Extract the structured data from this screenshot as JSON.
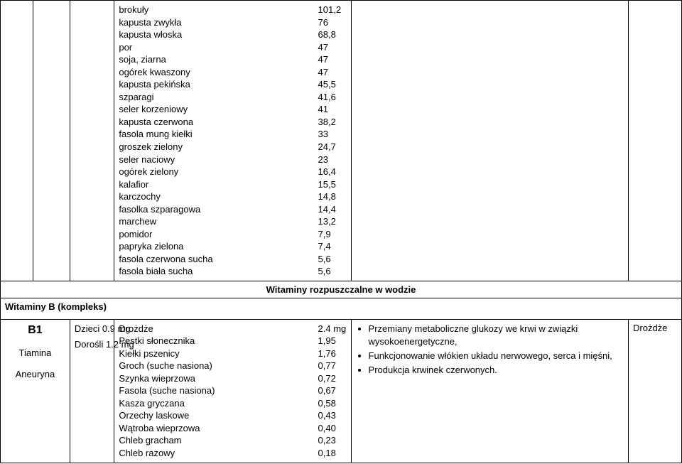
{
  "topFoods": {
    "items": [
      {
        "name": "brokuły",
        "value": "101,2"
      },
      {
        "name": "kapusta zwykła",
        "value": "76"
      },
      {
        "name": "kapusta włoska",
        "value": "68,8"
      },
      {
        "name": "por",
        "value": "47"
      },
      {
        "name": "soja, ziarna",
        "value": "47"
      },
      {
        "name": "ogórek kwaszony",
        "value": "47"
      },
      {
        "name": "kapusta pekińska",
        "value": "45,5"
      },
      {
        "name": "szparagi",
        "value": "41,6"
      },
      {
        "name": "seler korzeniowy",
        "value": "41"
      },
      {
        "name": "kapusta czerwona",
        "value": "38,2"
      },
      {
        "name": "fasola mung kiełki",
        "value": "33"
      },
      {
        "name": "groszek zielony",
        "value": "24,7"
      },
      {
        "name": "seler naciowy",
        "value": "23"
      },
      {
        "name": "ogórek zielony",
        "value": "16,4"
      },
      {
        "name": "kalafior",
        "value": "15,5"
      },
      {
        "name": "karczochy",
        "value": "14,8"
      },
      {
        "name": "fasolka szparagowa",
        "value": "14,4"
      },
      {
        "name": "marchew",
        "value": "13,2"
      },
      {
        "name": "pomidor",
        "value": "7,9"
      },
      {
        "name": "papryka zielona",
        "value": "7,4"
      },
      {
        "name": "fasola czerwona sucha",
        "value": "5,6"
      },
      {
        "name": "fasola biała sucha",
        "value": "5,6"
      }
    ]
  },
  "sectionHeader": "Witaminy rozpuszczalne w wodzie",
  "complexHeader": "Witaminy B (kompleks)",
  "b1": {
    "code": "B1",
    "name1": "Tiamina",
    "name2": "Aneuryna",
    "doseChild": "Dzieci 0.9 mg",
    "doseAdult": "Dorośli 1.2 mg",
    "foods": [
      {
        "name": "Drożdże",
        "value": "2.4 mg"
      },
      {
        "name": "Pestki słonecznika",
        "value": "1,95"
      },
      {
        "name": "Kiełki pszenicy",
        "value": "1,76"
      },
      {
        "name": "Groch (suche nasiona)",
        "value": "0,77"
      },
      {
        "name": "Szynka wieprzowa",
        "value": "0,72"
      },
      {
        "name": "Fasola (suche nasiona)",
        "value": "0,67"
      },
      {
        "name": "Kasza gryczana",
        "value": "0,58"
      },
      {
        "name": "Orzechy laskowe",
        "value": "0,43"
      },
      {
        "name": "Wątroba wieprzowa",
        "value": "0,40"
      },
      {
        "name": "Chleb gracham",
        "value": "0,23"
      },
      {
        "name": "Chleb razowy",
        "value": "0,18"
      }
    ],
    "functions": [
      "Przemiany metaboliczne glukozy we krwi w związki wysokoenergetyczne,",
      "Funkcjonowanie włókien układu nerwowego, serca i mięśni,",
      "Produkcja krwinek czerwonych."
    ],
    "rightCol": "Drożdże"
  }
}
